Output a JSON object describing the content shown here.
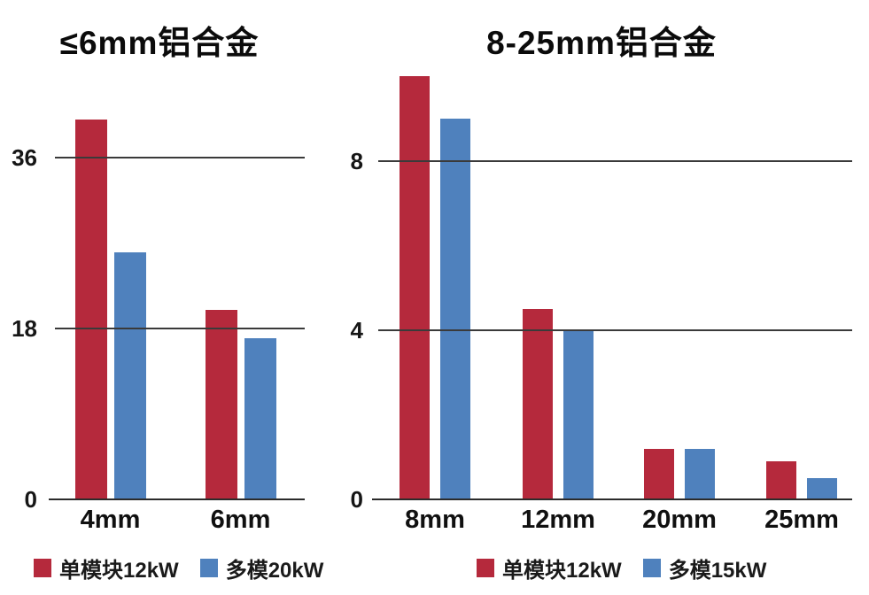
{
  "page": {
    "background": "#ffffff"
  },
  "colors": {
    "series_red": "#B5293C",
    "series_blue": "#4F81BD",
    "gridline": "#3a3a3a",
    "baseline": "#2b2b2b",
    "text": "#111111"
  },
  "chart_data": [
    {
      "type": "bar",
      "title": "≤6mm铝合金",
      "categories": [
        "4mm",
        "6mm"
      ],
      "series": [
        {
          "name": "单模块12kW",
          "color": "#B5293C",
          "values": [
            40,
            20
          ]
        },
        {
          "name": "多模20kW",
          "color": "#4F81BD",
          "values": [
            26,
            17
          ]
        }
      ],
      "yticks": [
        0,
        18,
        36
      ],
      "ylim": [
        0,
        40.5
      ],
      "xlabel": "",
      "ylabel": "",
      "grid": true,
      "gridlines_over_bars": true,
      "legend_position": "bottom"
    },
    {
      "type": "bar",
      "title": "8-25mm铝合金",
      "categories": [
        "8mm",
        "12mm",
        "20mm",
        "25mm"
      ],
      "series": [
        {
          "name": "单模块12kW",
          "color": "#B5293C",
          "values": [
            10,
            4.5,
            1.2,
            0.9
          ]
        },
        {
          "name": "多模15kW",
          "color": "#4F81BD",
          "values": [
            9,
            4,
            1.2,
            0.5
          ]
        }
      ],
      "yticks": [
        0,
        4,
        8
      ],
      "ylim": [
        0,
        10
      ],
      "xlabel": "",
      "ylabel": "",
      "grid": true,
      "gridlines_over_bars": true,
      "legend_position": "bottom"
    }
  ]
}
